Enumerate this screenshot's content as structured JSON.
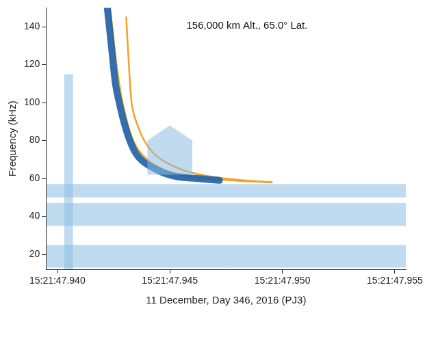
{
  "chart_data": {
    "type": "line",
    "annotation": "156,000 km Alt., 65.0° Lat.",
    "x_label": "11 December, Day 346, 2016 (PJ3)",
    "y_label": "Frequency (kHz)",
    "xlim": [
      47.9395,
      47.9555
    ],
    "ylim": [
      12,
      150
    ],
    "xticks": [
      {
        "value": 47.94,
        "label": "15:21:47.940"
      },
      {
        "value": 47.945,
        "label": "15:21:47.945"
      },
      {
        "value": 47.95,
        "label": "15:21:47.950"
      },
      {
        "value": 47.955,
        "label": "15:21:47.955"
      }
    ],
    "yticks": [
      20,
      40,
      60,
      80,
      100,
      120,
      140
    ],
    "grid": false,
    "series": [
      {
        "type": "area",
        "color": "#8dbde3",
        "x": [
          47.9395,
          47.9555
        ],
        "low": [
          13,
          13
        ],
        "values": [
          25,
          25
        ]
      },
      {
        "type": "area",
        "color": "#8dbde3",
        "x": [
          47.9395,
          47.9555
        ],
        "low": [
          35,
          35
        ],
        "values": [
          47,
          47
        ]
      },
      {
        "type": "area",
        "color": "#8dbde3",
        "x": [
          47.9395,
          47.9555
        ],
        "low": [
          50,
          50
        ],
        "values": [
          57,
          57
        ]
      },
      {
        "type": "area",
        "color": "#8dbde3",
        "x": [
          47.9403,
          47.9407
        ],
        "low": [
          12,
          12
        ],
        "values": [
          115,
          115
        ]
      },
      {
        "type": "area",
        "color": "#8dbde3",
        "x": [
          47.944,
          47.945,
          47.946
        ],
        "low": [
          62,
          62,
          62
        ],
        "values": [
          80,
          88,
          80
        ]
      },
      {
        "type": "line",
        "color": "#1d5fa6",
        "line_style": "thick",
        "x": [
          47.94222,
          47.9424,
          47.94258,
          47.94275,
          47.943,
          47.94322,
          47.9435,
          47.9438,
          47.9442,
          47.9447,
          47.9453,
          47.9462,
          47.9472
        ],
        "values": [
          150,
          130,
          110,
          100,
          88,
          80,
          73,
          69,
          66,
          63,
          61,
          60,
          59
        ]
      },
      {
        "type": "line",
        "color": "#f5a028",
        "line_style": "solid",
        "x": [
          47.94235,
          47.94258,
          47.94275,
          47.9429,
          47.94322,
          47.9435,
          47.944,
          47.9445,
          47.9454,
          47.9465,
          47.948,
          47.94953
        ],
        "values": [
          150,
          125,
          110,
          100,
          85,
          77,
          70,
          66,
          62,
          60,
          58.8,
          58
        ]
      },
      {
        "type": "line",
        "color": "#f5a028",
        "line_style": "solid",
        "x": [
          47.94306,
          47.94318,
          47.94326,
          47.9433,
          47.9436,
          47.94386,
          47.9443,
          47.9449,
          47.9457,
          47.9468,
          47.948,
          47.94953
        ],
        "values": [
          145,
          120,
          105,
          100,
          87,
          80,
          73,
          68,
          64,
          61,
          59.3,
          58
        ]
      }
    ]
  }
}
